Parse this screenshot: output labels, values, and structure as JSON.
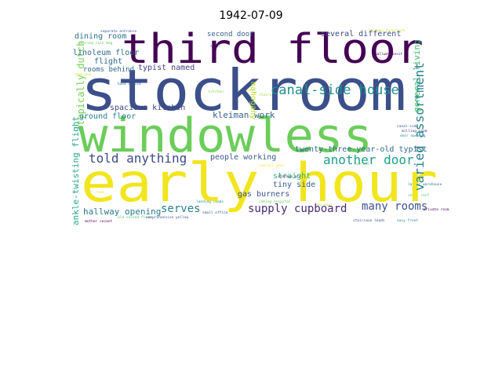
{
  "chart": {
    "title": "1942-07-09"
  },
  "chart_data": {
    "type": "wordcloud",
    "title": "1942-07-09",
    "words": [
      {
        "text": "third floor",
        "color": "#440154"
      },
      {
        "text": "stockroom",
        "color": "#3b4f8a"
      },
      {
        "text": "windowless",
        "color": "#6ccd5a"
      },
      {
        "text": "early hour",
        "color": "#f1e51d"
      },
      {
        "text": "canal-side house",
        "color": "#218e8d"
      },
      {
        "text": "varied assortment",
        "color": "#27808e"
      },
      {
        "text": "told anything",
        "color": "#3e4989"
      },
      {
        "text": "another door",
        "color": "#1f9e89"
      },
      {
        "text": "supply cupboard",
        "color": "#482878"
      },
      {
        "text": "many rooms",
        "color": "#3b528b"
      },
      {
        "text": "serves",
        "color": "#26828e"
      },
      {
        "text": "ankle-twisting flight",
        "color": "#26a784"
      },
      {
        "text": "hallway opening",
        "color": "#2a788e"
      },
      {
        "text": "typically dutch",
        "color": "#75d054"
      },
      {
        "text": "twenty-three-year-old typist",
        "color": "#2f6c8e"
      },
      {
        "text": "kleiman work",
        "color": "#34608d"
      },
      {
        "text": "people working",
        "color": "#375b8d"
      },
      {
        "text": "spacious kitchen",
        "color": "#404387"
      },
      {
        "text": "typist named",
        "color": "#433e85"
      },
      {
        "text": "ground floor",
        "color": "#287d8e"
      },
      {
        "text": "general living",
        "color": "#3fbc73"
      },
      {
        "text": "linoleum floor",
        "color": "#306a8e"
      },
      {
        "text": "dining room",
        "color": "#2c738e"
      },
      {
        "text": "second door",
        "color": "#32658e"
      },
      {
        "text": "several different",
        "color": "#3e4a89"
      },
      {
        "text": "rooms behind",
        "color": "#31668e"
      },
      {
        "text": "flight",
        "color": "#31688e"
      },
      {
        "text": "mahogany",
        "color": "#b5de2b"
      },
      {
        "text": "straight",
        "color": "#2db27d"
      },
      {
        "text": "tiny side",
        "color": "#365d8d"
      },
      {
        "text": "gas burners",
        "color": "#38588c"
      }
    ]
  }
}
